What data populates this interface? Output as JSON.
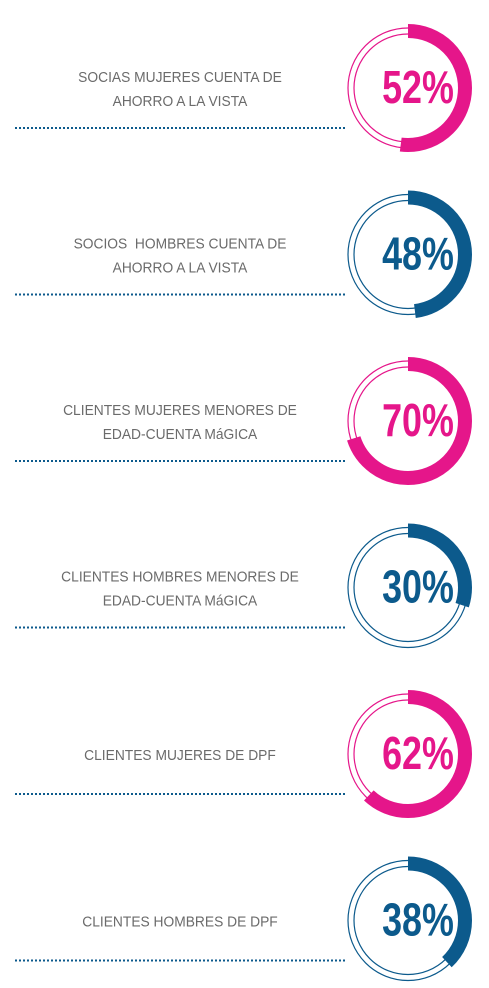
{
  "items": [
    {
      "label": [
        "SOCIAS MUJERES CUENTA DE",
        "AHORRO A LA VISTA"
      ],
      "value": 52,
      "value_label": "52%",
      "color": "#e5168a"
    },
    {
      "label": [
        "SOCIOS  HOMBRES CUENTA DE",
        "AHORRO A LA VISTA"
      ],
      "value": 48,
      "value_label": "48%",
      "color": "#0c5a8c"
    },
    {
      "label": [
        "CLIENTES MUJERES MENORES DE",
        "EDAD-CUENTA MáGICA"
      ],
      "value": 70,
      "value_label": "70%",
      "color": "#e5168a"
    },
    {
      "label": [
        "CLIENTES HOMBRES MENORES DE",
        "EDAD-CUENTA MáGICA"
      ],
      "value": 30,
      "value_label": "30%",
      "color": "#0c5a8c"
    },
    {
      "label": [
        "CLIENTES MUJERES DE DPF"
      ],
      "value": 62,
      "value_label": "62%",
      "color": "#e5168a"
    },
    {
      "label": [
        "CLIENTES HOMBRES DE DPF"
      ],
      "value": 38,
      "value_label": "38%",
      "color": "#0c5a8c"
    }
  ]
}
